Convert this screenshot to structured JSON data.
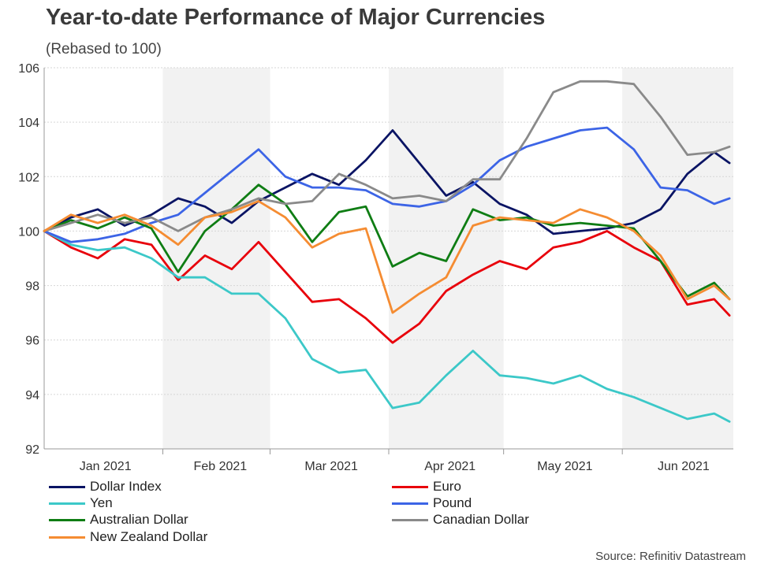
{
  "header": {
    "title": "Year-to-date Performance of Major Currencies",
    "subtitle": "(Rebased to 100)"
  },
  "footer": {
    "source": "Source: Refinitiv Datastream"
  },
  "chart_data": {
    "type": "line",
    "title": "Year-to-date Performance of Major Currencies",
    "subtitle": "(Rebased to 100)",
    "xlabel": "",
    "ylabel": "",
    "ylim": [
      92,
      106
    ],
    "y_ticks": [
      92,
      94,
      96,
      98,
      100,
      102,
      104,
      106
    ],
    "x_ticks": [
      {
        "label": "Jan 2021",
        "day": 16
      },
      {
        "label": "Feb 2021",
        "day": 46
      },
      {
        "label": "Mar 2021",
        "day": 75
      },
      {
        "label": "Apr 2021",
        "day": 106
      },
      {
        "label": "May 2021",
        "day": 136
      },
      {
        "label": "Jun 2021",
        "day": 167
      }
    ],
    "xlim": [
      0,
      180
    ],
    "month_boundaries": [
      31,
      59,
      90,
      120,
      151
    ],
    "shaded_months": [
      [
        31,
        59
      ],
      [
        90,
        120
      ],
      [
        151,
        180
      ]
    ],
    "grid": "horizontal dotted",
    "legend_position": "bottom",
    "x": [
      0,
      7,
      14,
      21,
      28,
      35,
      42,
      49,
      56,
      63,
      70,
      77,
      84,
      91,
      98,
      105,
      112,
      119,
      126,
      133,
      140,
      147,
      154,
      161,
      168,
      175,
      179
    ],
    "series": [
      {
        "name": "Dollar Index",
        "color": "#0a1464",
        "values": [
          100.0,
          100.5,
          100.8,
          100.2,
          100.6,
          101.2,
          100.9,
          100.3,
          101.1,
          101.6,
          102.1,
          101.7,
          102.6,
          103.7,
          102.5,
          101.3,
          101.8,
          101.0,
          100.6,
          99.9,
          100.0,
          100.1,
          100.3,
          100.8,
          102.1,
          102.9,
          102.5
        ]
      },
      {
        "name": "Euro",
        "color": "#e8000b",
        "values": [
          100.0,
          99.4,
          99.0,
          99.7,
          99.5,
          98.2,
          99.1,
          98.6,
          99.6,
          98.5,
          97.4,
          97.5,
          96.8,
          95.9,
          96.6,
          97.8,
          98.4,
          98.9,
          98.6,
          99.4,
          99.6,
          100.0,
          99.4,
          98.9,
          97.3,
          97.5,
          96.9
        ]
      },
      {
        "name": "Yen",
        "color": "#3cc8c8",
        "values": [
          100.0,
          99.5,
          99.3,
          99.4,
          99.0,
          98.3,
          98.3,
          97.7,
          97.7,
          96.8,
          95.3,
          94.8,
          94.9,
          93.5,
          93.7,
          94.7,
          95.6,
          94.7,
          94.6,
          94.4,
          94.7,
          94.2,
          93.9,
          93.5,
          93.1,
          93.3,
          93.0
        ]
      },
      {
        "name": "Pound",
        "color": "#3c64e6",
        "values": [
          100.0,
          99.6,
          99.7,
          99.9,
          100.3,
          100.6,
          101.4,
          102.2,
          103.0,
          102.0,
          101.6,
          101.6,
          101.5,
          101.0,
          100.9,
          101.1,
          101.7,
          102.6,
          103.1,
          103.4,
          103.7,
          103.8,
          103.0,
          101.6,
          101.5,
          101.0,
          101.2
        ]
      },
      {
        "name": "Australian Dollar",
        "color": "#0f7d14",
        "values": [
          100.0,
          100.4,
          100.1,
          100.5,
          100.1,
          98.5,
          100.0,
          100.8,
          101.7,
          101.0,
          99.6,
          100.7,
          100.9,
          98.7,
          99.2,
          98.9,
          100.8,
          100.4,
          100.5,
          100.2,
          100.3,
          100.2,
          100.1,
          98.9,
          97.6,
          98.1,
          97.5
        ]
      },
      {
        "name": "Canadian Dollar",
        "color": "#8a8a8a",
        "values": [
          100.0,
          100.3,
          100.6,
          100.3,
          100.5,
          100.0,
          100.5,
          100.8,
          101.2,
          101.0,
          101.1,
          102.1,
          101.7,
          101.2,
          101.3,
          101.1,
          101.9,
          101.9,
          103.4,
          105.1,
          105.5,
          105.5,
          105.4,
          104.2,
          102.8,
          102.9,
          103.1
        ]
      },
      {
        "name": "New Zealand Dollar",
        "color": "#f58c32",
        "values": [
          100.0,
          100.6,
          100.3,
          100.6,
          100.2,
          99.5,
          100.5,
          100.7,
          101.1,
          100.5,
          99.4,
          99.9,
          100.1,
          97.0,
          97.7,
          98.3,
          100.2,
          100.5,
          100.4,
          100.3,
          100.8,
          100.5,
          100.0,
          99.1,
          97.5,
          98.0,
          97.5
        ]
      }
    ]
  }
}
